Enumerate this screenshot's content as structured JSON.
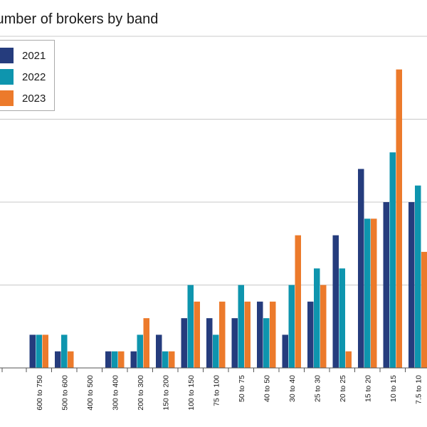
{
  "title": "Number of brokers by band",
  "chart_data": {
    "type": "bar",
    "title": "Number of brokers by band",
    "xlabel": "",
    "ylabel": "",
    "categories": [
      "600 to 750",
      "500 to 600",
      "400 to 500",
      "300 to 400",
      "200 to 300",
      "150 to 200",
      "100 to 150",
      "75 to 100",
      "50 to 75",
      "40 to 50",
      "30 to 40",
      "25 to 30",
      "20 to 25",
      "15 to 20",
      "10 to 15",
      "7.5 to 10"
    ],
    "series": [
      {
        "name": "2021",
        "color": "#253C7D",
        "values": [
          2,
          1,
          0,
          1,
          1,
          2,
          3,
          3,
          3,
          4,
          2,
          4,
          8,
          12,
          10,
          10
        ]
      },
      {
        "name": "2022",
        "color": "#0E95AE",
        "values": [
          2,
          2,
          0,
          1,
          2,
          1,
          5,
          2,
          5,
          3,
          5,
          6,
          6,
          9,
          13,
          11
        ]
      },
      {
        "name": "2023",
        "color": "#EC7A2B",
        "values": [
          2,
          1,
          0,
          1,
          3,
          1,
          4,
          4,
          4,
          4,
          8,
          5,
          1,
          9,
          18,
          7
        ]
      }
    ],
    "ylim": [
      0,
      20
    ],
    "grid": true,
    "legend": "top-left"
  }
}
